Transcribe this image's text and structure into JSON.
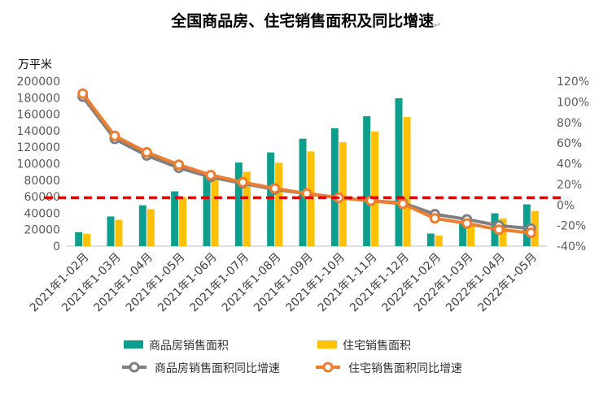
{
  "chart_data": {
    "type": "bar",
    "title": "全国商品房、住宅销售面积及同比增速",
    "title_mark": "↵",
    "ylabel": "万平米",
    "ylim": [
      0,
      200000
    ],
    "y_ticks": [
      0,
      20000,
      40000,
      60000,
      80000,
      100000,
      120000,
      140000,
      160000,
      180000,
      200000
    ],
    "y2lim": [
      -40,
      120
    ],
    "y2_ticks": [
      "-40%",
      "-20%",
      "0%",
      "20%",
      "40%",
      "60%",
      "80%",
      "100%",
      "120%"
    ],
    "y2_tick_values": [
      -40,
      -20,
      0,
      20,
      40,
      60,
      80,
      100,
      120
    ],
    "categories": [
      "2021年1-02月",
      "2021年1-03月",
      "2021年1-04月",
      "2021年1-05月",
      "2021年1-06月",
      "2021年1-07月",
      "2021年1-08月",
      "2021年1-09月",
      "2021年1-10月",
      "2021年1-11月",
      "2021年1-12月",
      "2022年1-02月",
      "2022年1-03月",
      "2022年1-04月",
      "2022年1-05月"
    ],
    "series": [
      {
        "name": "商品房销售面积",
        "type": "bar",
        "axis": "left",
        "color": "#0E9E8E",
        "values": [
          17000,
          36000,
          49600,
          66500,
          88600,
          101400,
          113700,
          130300,
          143000,
          157600,
          179400,
          15300,
          31000,
          39800,
          50700
        ]
      },
      {
        "name": "住宅销售面积",
        "type": "bar",
        "axis": "left",
        "color": "#FFC000",
        "values": [
          15000,
          32000,
          44800,
          59800,
          79900,
          90200,
          101000,
          114900,
          126000,
          139000,
          156500,
          12800,
          26500,
          33600,
          42700
        ]
      },
      {
        "name": "商品房销售面积同比增速",
        "type": "line",
        "axis": "right",
        "color": "#7F7F7F",
        "values": [
          105,
          64,
          48,
          36,
          27,
          21,
          15,
          11,
          7,
          4,
          1.9,
          -9,
          -14,
          -20,
          -23
        ]
      },
      {
        "name": "住宅销售面积同比增速",
        "type": "line",
        "axis": "right",
        "color": "#ED7D31",
        "values": [
          108,
          67,
          51,
          39,
          29,
          22,
          16,
          11,
          7,
          4,
          1.1,
          -13,
          -18,
          -24,
          -27
        ]
      }
    ],
    "reference_line": {
      "axis": "right",
      "value": 7,
      "color": "#E00000",
      "style": "dashed"
    },
    "legend_position": "bottom",
    "grid": false
  }
}
